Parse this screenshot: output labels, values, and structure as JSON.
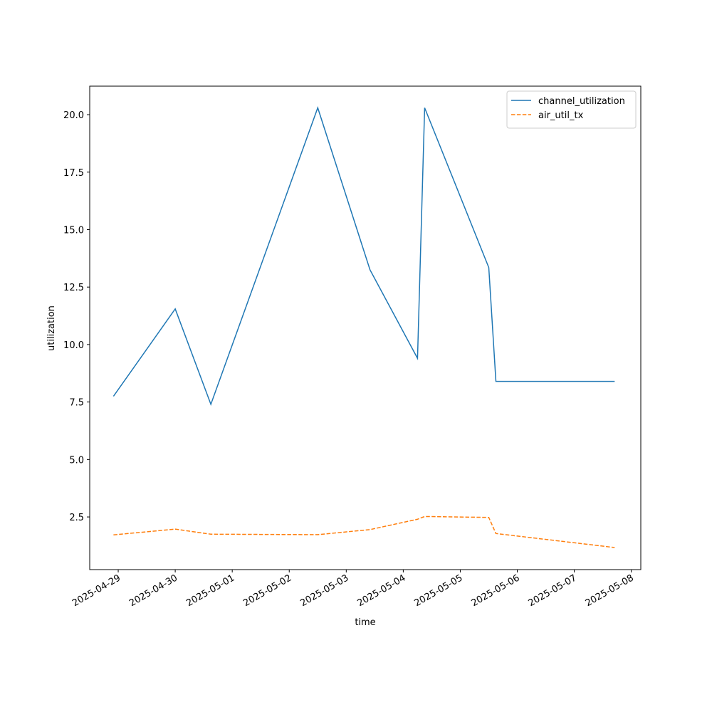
{
  "chart_data": {
    "type": "line",
    "x_label": "time",
    "y_label": "utilization",
    "x": [
      "2025-04-28 22:00",
      "2025-04-30 00:00",
      "2025-04-30 15:00",
      "2025-05-02 12:00",
      "2025-05-03 10:00",
      "2025-05-04 06:00",
      "2025-05-04 09:00",
      "2025-05-05 12:00",
      "2025-05-05 15:00",
      "2025-05-07 17:00"
    ],
    "series": [
      {
        "name": "channel_utilization",
        "color": "#1f77b4",
        "linestyle": "solid",
        "values": [
          7.75,
          11.55,
          7.4,
          20.3,
          13.25,
          9.4,
          20.3,
          13.35,
          8.4,
          8.4
        ]
      },
      {
        "name": "air_util_tx",
        "color": "#ff7f0e",
        "linestyle": "dashed",
        "values": [
          1.72,
          1.97,
          1.75,
          1.73,
          1.95,
          2.4,
          2.52,
          2.48,
          1.78,
          1.17
        ]
      }
    ],
    "xlim": [
      "2025-04-28 12:00",
      "2025-05-08 04:00"
    ],
    "xticks": [
      "2025-04-29",
      "2025-04-30",
      "2025-05-01",
      "2025-05-02",
      "2025-05-03",
      "2025-05-04",
      "2025-05-05",
      "2025-05-06",
      "2025-05-07",
      "2025-05-08"
    ],
    "ylim": [
      0.21,
      21.24
    ],
    "yticks": [
      {
        "value": 2.5,
        "label": "2.5"
      },
      {
        "value": 5,
        "label": "5.0"
      },
      {
        "value": 7.5,
        "label": "7.5"
      },
      {
        "value": 10,
        "label": "10.0"
      },
      {
        "value": 12.5,
        "label": "12.5"
      },
      {
        "value": 15,
        "label": "15.0"
      },
      {
        "value": 17.5,
        "label": "17.5"
      },
      {
        "value": 20,
        "label": "20.0"
      }
    ],
    "legend": "upper right",
    "grid": false
  }
}
